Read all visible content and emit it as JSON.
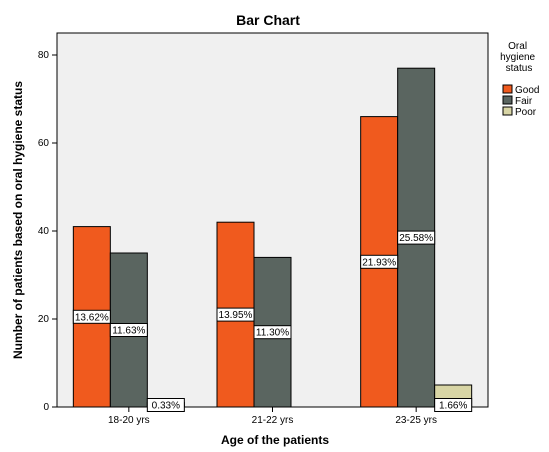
{
  "chart_data": {
    "type": "bar",
    "title": "Bar Chart",
    "xlabel": "Age of the patients",
    "ylabel": "Number of patients based on oral hygiene status",
    "ylim": [
      0,
      85
    ],
    "yticks": [
      0,
      20,
      40,
      60,
      80
    ],
    "categories": [
      "18-20 yrs",
      "21-22 yrs",
      "23-25 yrs"
    ],
    "series": [
      {
        "name": "Good",
        "color": "#f05a1e",
        "values": [
          41,
          42,
          66
        ],
        "labels": [
          "13.62%",
          "13.95%",
          "21.93%"
        ]
      },
      {
        "name": "Fair",
        "color": "#5a6560",
        "values": [
          35,
          34,
          77
        ],
        "labels": [
          "11.63%",
          "11.30%",
          "25.58%"
        ]
      },
      {
        "name": "Poor",
        "color": "#d8d5a5",
        "values": [
          1,
          0,
          5
        ],
        "labels": [
          "0.33%",
          "",
          "1.66%"
        ]
      }
    ],
    "legend": {
      "title": "Oral hygiene status",
      "position": "right"
    },
    "background_color": "#f0f0f0",
    "grid": false
  }
}
